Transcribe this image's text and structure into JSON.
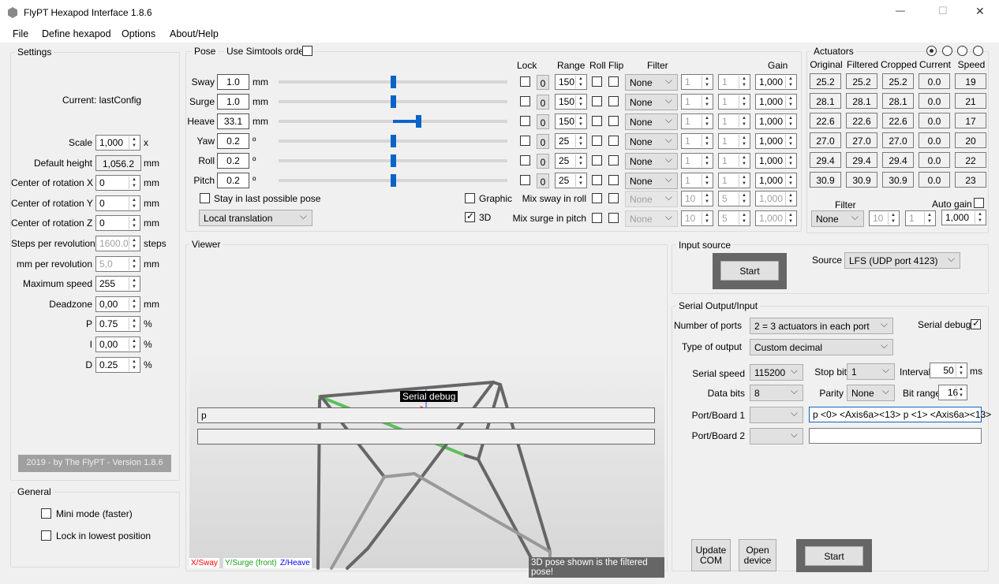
{
  "window": {
    "title": "FlyPT Hexapod Interface 1.8.6",
    "minimize": "—",
    "maximize": "☐",
    "close": "✕"
  },
  "menu": [
    "File",
    "Define hexapod",
    "Options",
    "About/Help"
  ],
  "settings": {
    "title": "Settings",
    "current": "Current: lastConfig",
    "rows": [
      {
        "label": "Scale",
        "value": "1,000",
        "unit": "x",
        "type": "spin"
      },
      {
        "label": "Default height",
        "value": "1,056.2",
        "unit": "mm",
        "type": "ro"
      },
      {
        "label": "Center of rotation X",
        "value": "0",
        "unit": "mm",
        "type": "spin"
      },
      {
        "label": "Center of rotation Y",
        "value": "0",
        "unit": "mm",
        "type": "spin"
      },
      {
        "label": "Center of rotation Z",
        "value": "0",
        "unit": "mm",
        "type": "spin"
      },
      {
        "label": "Steps per revolution",
        "value": "1600.0",
        "unit": "steps",
        "type": "dis"
      },
      {
        "label": "mm per revolution",
        "value": "5,0",
        "unit": "mm",
        "type": "dis"
      },
      {
        "label": "Maximum speed",
        "value": "255",
        "unit": "",
        "type": "spin"
      },
      {
        "label": "Deadzone",
        "value": "0,00",
        "unit": "mm",
        "type": "spin"
      },
      {
        "label": "P",
        "value": "0.75",
        "unit": "%",
        "type": "spin"
      },
      {
        "label": "I",
        "value": "0,00",
        "unit": "%",
        "type": "spin"
      },
      {
        "label": "D",
        "value": "0.25",
        "unit": "%",
        "type": "spin"
      }
    ],
    "footer": "2019 - by The FlyPT - Version 1.8.6"
  },
  "general": {
    "title": "General",
    "mini_mode": "Mini mode (faster)",
    "lock_lowest": "Lock in lowest position"
  },
  "pose": {
    "title": "Pose",
    "simtools": "Use Simtools order",
    "headers": {
      "lock": "Lock",
      "range": "Range",
      "roll": "Roll",
      "flip": "Flip",
      "filter": "Filter",
      "gain": "Gain"
    },
    "rows": [
      {
        "label": "Sway",
        "value": "1.0",
        "unit": "mm",
        "slider": 0.5,
        "lock_value": "0",
        "range": "150",
        "filter": "None",
        "f1": "1",
        "f2": "1",
        "gain": "1,000"
      },
      {
        "label": "Surge",
        "value": "1.0",
        "unit": "mm",
        "slider": 0.5,
        "lock_value": "0",
        "range": "150",
        "filter": "None",
        "f1": "1",
        "f2": "1",
        "gain": "1,000"
      },
      {
        "label": "Heave",
        "value": "33.1",
        "unit": "mm",
        "slider": 0.61,
        "lock_value": "0",
        "range": "150",
        "filter": "None",
        "f1": "1",
        "f2": "1",
        "gain": "1,000"
      },
      {
        "label": "Yaw",
        "value": "0.2",
        "unit": "º",
        "slider": 0.5,
        "lock_value": "0",
        "range": "25",
        "filter": "None",
        "f1": "1",
        "f2": "1",
        "gain": "1,000"
      },
      {
        "label": "Roll",
        "value": "0.2",
        "unit": "º",
        "slider": 0.5,
        "lock_value": "0",
        "range": "25",
        "filter": "None",
        "f1": "1",
        "f2": "1",
        "gain": "1,000"
      },
      {
        "label": "Pitch",
        "value": "0.2",
        "unit": "º",
        "slider": 0.5,
        "lock_value": "0",
        "range": "25",
        "filter": "None",
        "f1": "1",
        "f2": "1",
        "gain": "1,000"
      }
    ],
    "stay_last": "Stay in last possible pose",
    "translation": "Local translation",
    "graphic": "Graphic",
    "three_d": "3D",
    "mix": [
      {
        "label": "Mix sway in roll",
        "filter": "None",
        "f1": "10",
        "f2": "5",
        "gain": "1,000"
      },
      {
        "label": "Mix surge in pitch",
        "filter": "None",
        "f1": "10",
        "f2": "5",
        "gain": "1,000"
      }
    ]
  },
  "actuators": {
    "title": "Actuators",
    "headers": [
      "Original",
      "Filtered",
      "Cropped",
      "Current",
      "Speed"
    ],
    "rows": [
      [
        "25.2",
        "25.2",
        "25.2",
        "0.0",
        "19"
      ],
      [
        "28.1",
        "28.1",
        "28.1",
        "0.0",
        "21"
      ],
      [
        "22.6",
        "22.6",
        "22.6",
        "0.0",
        "17"
      ],
      [
        "27.0",
        "27.0",
        "27.0",
        "0.0",
        "20"
      ],
      [
        "29.4",
        "29.4",
        "29.4",
        "0.0",
        "22"
      ],
      [
        "30.9",
        "30.9",
        "30.9",
        "0.0",
        "23"
      ]
    ],
    "filter_label": "Filter",
    "filter": "None",
    "f1": "10",
    "f2": "1",
    "auto_gain": "Auto gain",
    "gain": "1,000"
  },
  "viewer": {
    "title": "Viewer",
    "serial_debug_tag": "Serial debug",
    "debug_line1": "p",
    "debug_line2": "",
    "axis_x": "X/Sway",
    "axis_y": "Y/Surge (front)",
    "axis_z": "Z/Heave",
    "note": "3D pose shown is the filtered pose!"
  },
  "input_source": {
    "title": "Input source",
    "start": "Start",
    "source_label": "Source",
    "source": "LFS (UDP port 4123)"
  },
  "serial": {
    "title": "Serial Output/Input",
    "ports_label": "Number of ports",
    "ports": "2 = 3 actuators in each port",
    "serial_debug": "Serial debug",
    "type_label": "Type of output",
    "type": "Custom decimal",
    "speed_label": "Serial speed",
    "speed": "115200",
    "stop_label": "Stop bits",
    "stop": "1",
    "interval_label": "Interval",
    "interval": "50",
    "interval_unit": "ms",
    "data_label": "Data bits",
    "data": "8",
    "parity_label": "Parity",
    "parity": "None",
    "bitrange_label": "Bit range",
    "bitrange": "16",
    "port1_label": "Port/Board 1",
    "port1_format": "p <0> <Axis6a><13> p <1> <Axis6a><13>",
    "port2_label": "Port/Board 2",
    "port2_format": "",
    "update_com": "Update COM",
    "open_device": "Open device",
    "start": "Start"
  },
  "colors": {
    "accent": "#0a64c8",
    "axis_x": "#ff0000",
    "axis_y": "#16a016",
    "axis_z": "#0000ff"
  }
}
